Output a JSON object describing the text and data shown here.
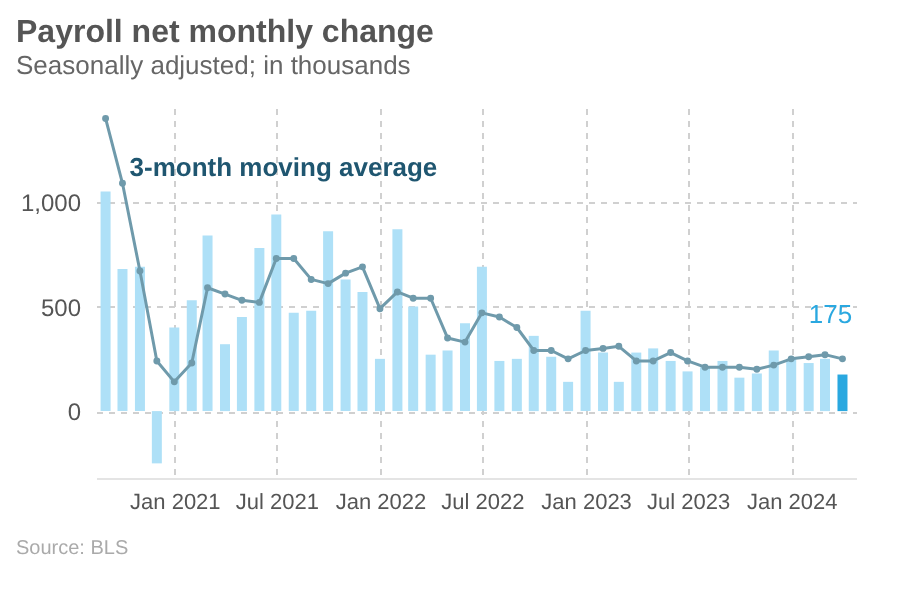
{
  "chart_data": {
    "type": "bar",
    "title": "Payroll net monthly change",
    "subtitle": "Seasonally adjusted; in thousands",
    "annotations": [
      "Source: BLS"
    ],
    "x": [
      "2020-09",
      "2020-10",
      "2020-11",
      "2020-12",
      "2021-01",
      "2021-02",
      "2021-03",
      "2021-04",
      "2021-05",
      "2021-06",
      "2021-07",
      "2021-08",
      "2021-09",
      "2021-10",
      "2021-11",
      "2021-12",
      "2022-01",
      "2022-02",
      "2022-03",
      "2022-04",
      "2022-05",
      "2022-06",
      "2022-07",
      "2022-08",
      "2022-09",
      "2022-10",
      "2022-11",
      "2022-12",
      "2023-01",
      "2023-02",
      "2023-03",
      "2023-04",
      "2023-05",
      "2023-06",
      "2023-07",
      "2023-08",
      "2023-09",
      "2023-10",
      "2023-11",
      "2023-12",
      "2024-01",
      "2024-02",
      "2024-03",
      "2024-04"
    ],
    "series": [
      {
        "colors": [
          "#aee0f7",
          "#aee0f7",
          "#aee0f7",
          "#aee0f7",
          "#aee0f7",
          "#aee0f7",
          "#aee0f7",
          "#aee0f7",
          "#aee0f7",
          "#aee0f7",
          "#aee0f7",
          "#aee0f7",
          "#aee0f7",
          "#aee0f7",
          "#aee0f7",
          "#aee0f7",
          "#aee0f7",
          "#aee0f7",
          "#aee0f7",
          "#aee0f7",
          "#aee0f7",
          "#aee0f7",
          "#aee0f7",
          "#aee0f7",
          "#aee0f7",
          "#aee0f7",
          "#aee0f7",
          "#aee0f7",
          "#aee0f7",
          "#aee0f7",
          "#aee0f7",
          "#aee0f7",
          "#aee0f7",
          "#aee0f7",
          "#aee0f7",
          "#aee0f7",
          "#aee0f7",
          "#aee0f7",
          "#aee0f7",
          "#aee0f7",
          "#aee0f7",
          "#aee0f7",
          "#aee0f7",
          "#2aa8e0"
        ],
        "values": [
          1050,
          680,
          690,
          -250,
          400,
          530,
          840,
          320,
          450,
          780,
          940,
          470,
          480,
          860,
          630,
          570,
          250,
          870,
          500,
          270,
          290,
          420,
          690,
          240,
          250,
          360,
          260,
          140,
          480,
          280,
          140,
          280,
          300,
          240,
          190,
          210,
          240,
          160,
          180,
          290,
          250,
          230,
          250,
          175
        ],
        "value_labels": [
          null,
          null,
          null,
          null,
          null,
          null,
          null,
          null,
          null,
          null,
          null,
          null,
          null,
          null,
          null,
          null,
          null,
          null,
          null,
          null,
          null,
          null,
          null,
          null,
          null,
          null,
          null,
          null,
          null,
          null,
          null,
          null,
          null,
          null,
          null,
          null,
          null,
          null,
          null,
          null,
          null,
          null,
          null,
          "175"
        ]
      },
      {
        "type": "line",
        "name": "3-month moving average",
        "color": "#6f9aab",
        "marker": "circle",
        "values": [
          1400,
          1090,
          670,
          240,
          140,
          230,
          590,
          560,
          530,
          520,
          730,
          730,
          630,
          610,
          660,
          690,
          490,
          570,
          540,
          540,
          350,
          330,
          470,
          450,
          400,
          290,
          290,
          250,
          290,
          300,
          310,
          240,
          240,
          280,
          240,
          210,
          210,
          210,
          200,
          220,
          250,
          260,
          270,
          250
        ]
      }
    ],
    "xlim": [
      "2020-08-15",
      "2024-04-25"
    ],
    "xticks": [
      {
        "value": "2021-01",
        "label": "Jan 2021"
      },
      {
        "value": "2021-07",
        "label": "Jul 2021"
      },
      {
        "value": "2022-01",
        "label": "Jan 2022"
      },
      {
        "value": "2022-07",
        "label": "Jul 2022"
      },
      {
        "value": "2023-01",
        "label": "Jan 2023"
      },
      {
        "value": "2023-07",
        "label": "Jul 2023"
      },
      {
        "value": "2024-01",
        "label": "Jan 2024"
      }
    ],
    "ylim": [
      -320,
      1450
    ],
    "yticks": [
      0,
      500,
      {
        "value": 1000,
        "label": "1,000"
      }
    ],
    "grid": true,
    "line_style": "solid"
  }
}
